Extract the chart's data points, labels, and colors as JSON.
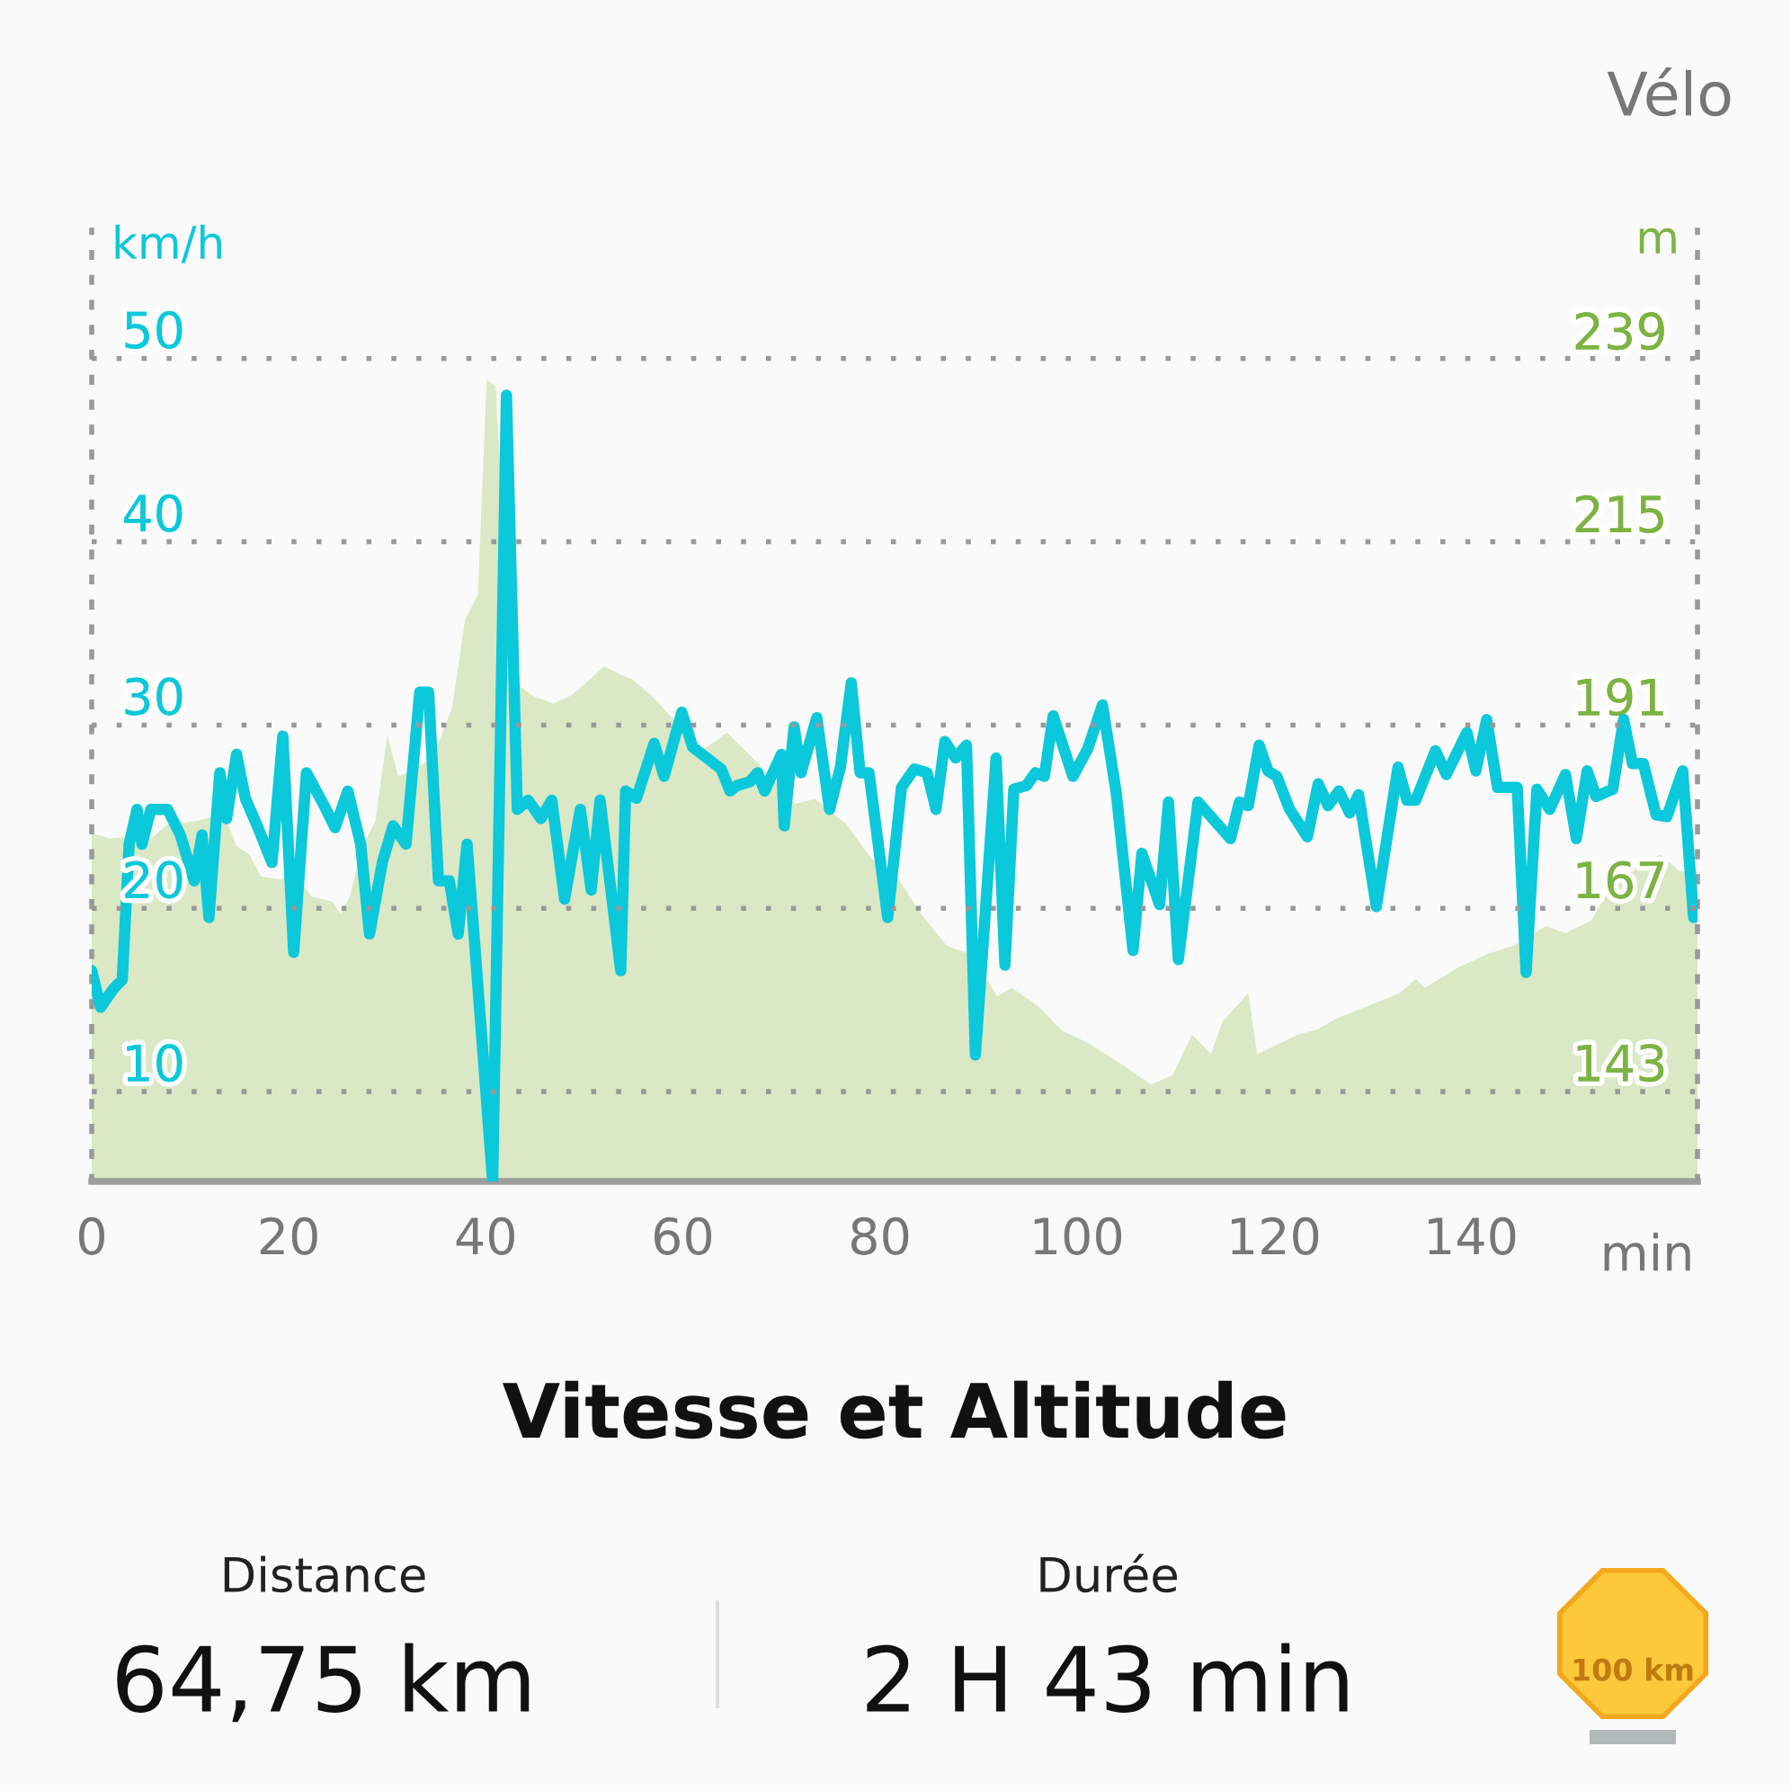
{
  "chart_data": {
    "type": "line",
    "title": "Vitesse et Altitude",
    "xlabel": "min",
    "ylabel": "km/h",
    "y2label": "m",
    "xlim": [
      0,
      163
    ],
    "xticks": [
      0,
      20,
      40,
      60,
      80,
      100,
      120,
      140
    ],
    "ylim": [
      5.1,
      57
    ],
    "yticks": [
      10,
      20,
      30,
      40,
      50
    ],
    "y2lim": [
      131.2,
      256
    ],
    "y2ticks": [
      143,
      167,
      191,
      215,
      239
    ],
    "grid": "y",
    "line_style": "solid",
    "marker": "none",
    "series": [
      {
        "type": "area",
        "axis": "y2",
        "color": "#dae8c5",
        "x": [
          0,
          1.8,
          4.0,
          5.1,
          7.7,
          10.8,
          13.4,
          14.7,
          16.0,
          17.2,
          19.2,
          20.5,
          22.3,
          24.4,
          25.3,
          26.2,
          27.5,
          28.8,
          30.0,
          31.1,
          32.6,
          34.6,
          36.6,
          37.9,
          39.2,
          40.1,
          41.0,
          41.8,
          43.0,
          44.9,
          46.9,
          48.7,
          50.0,
          52.0,
          53.8,
          54.8,
          56.8,
          59.3,
          61.9,
          64.5,
          67.6,
          71.4,
          73.4,
          76.6,
          79.1,
          81.7,
          84.2,
          86.8,
          89.4,
          91.9,
          93.4,
          96.0,
          98.5,
          101.1,
          104.9,
          107.5,
          109.7,
          111.7,
          113.6,
          114.8,
          117.4,
          118.3,
          122.5,
          124.5,
          126.4,
          129.7,
          132.8,
          134.4,
          135.3,
          138.6,
          141.8,
          144.3,
          147.6,
          149.6,
          152.2,
          154.8,
          159.2,
          161.2,
          163
        ],
        "values": [
          176.9,
          176.2,
          176.4,
          175.2,
          178.0,
          178.5,
          179.5,
          175.2,
          174.1,
          171.2,
          170.8,
          171.9,
          168.6,
          167.9,
          166.3,
          168.6,
          175.2,
          178.5,
          189.8,
          184.4,
          185.1,
          186.8,
          193.4,
          204.9,
          208.2,
          236.4,
          235.5,
          216.6,
          196.6,
          194.8,
          193.9,
          195.0,
          196.4,
          198.8,
          197.6,
          197.1,
          195.0,
          191.5,
          187.7,
          190.1,
          186.1,
          180.7,
          181.4,
          178.1,
          173.6,
          171.2,
          166.3,
          162.1,
          160.9,
          155.5,
          156.6,
          154.3,
          151.0,
          149.4,
          146.3,
          143.9,
          145.1,
          150.5,
          147.9,
          152.2,
          155.9,
          147.9,
          150.5,
          151.2,
          152.6,
          154.3,
          155.9,
          157.8,
          156.6,
          159.2,
          161.1,
          162.1,
          164.7,
          163.8,
          165.4,
          171.2,
          174.1,
          171.9,
          171.9
        ]
      },
      {
        "color": "#0bc8da",
        "x": [
          0,
          0.9,
          2.2,
          3.1,
          3.8,
          4.6,
          5.1,
          6.0,
          7.7,
          9.0,
          10.4,
          11.2,
          11.9,
          13.0,
          13.7,
          14.7,
          15.6,
          16.8,
          18.3,
          19.4,
          20.5,
          21.8,
          23.6,
          24.7,
          26.0,
          27.3,
          28.2,
          29.5,
          30.6,
          31.9,
          33.3,
          34.2,
          35.2,
          36.3,
          37.2,
          38.1,
          38.8,
          40.7,
          42.1,
          43.2,
          44.3,
          45.6,
          46.7,
          48.0,
          49.6,
          50.7,
          51.6,
          53.7,
          54.2,
          55.3,
          57.1,
          58.1,
          59.9,
          61.0,
          63.9,
          64.8,
          65.5,
          66.8,
          67.6,
          68.3,
          70.0,
          70.3,
          71.3,
          72.0,
          73.6,
          74.9,
          76.0,
          77.1,
          78.0,
          78.9,
          80.8,
          82.2,
          83.5,
          84.8,
          85.7,
          86.6,
          87.7,
          88.8,
          89.7,
          91.8,
          92.7,
          93.6,
          94.9,
          95.8,
          96.7,
          97.6,
          99.6,
          101.1,
          102.6,
          104.0,
          105.7,
          106.6,
          108.4,
          109.3,
          110.3,
          112.3,
          115.6,
          116.5,
          117.4,
          118.5,
          119.4,
          120.3,
          121.6,
          123.4,
          124.5,
          125.5,
          126.6,
          127.7,
          128.6,
          130.4,
          132.6,
          133.5,
          134.4,
          136.4,
          137.5,
          139.6,
          140.5,
          141.6,
          142.7,
          144.7,
          145.6,
          146.7,
          148.0,
          149.6,
          150.7,
          151.8,
          152.7,
          154.4,
          155.5,
          156.4,
          157.5,
          158.8,
          159.9,
          161.5,
          162.6,
          163
        ],
        "values": [
          16.6,
          14.6,
          15.6,
          16.1,
          23.5,
          25.4,
          23.5,
          25.4,
          25.4,
          24.0,
          21.5,
          24.0,
          19.5,
          27.4,
          24.9,
          28.4,
          26.0,
          24.5,
          22.5,
          29.4,
          17.6,
          27.4,
          25.6,
          24.4,
          26.4,
          23.5,
          18.6,
          22.5,
          24.5,
          23.5,
          31.8,
          31.8,
          21.5,
          21.5,
          18.6,
          23.5,
          18.6,
          5.1,
          48.0,
          25.4,
          25.9,
          24.9,
          25.9,
          20.5,
          25.4,
          21.0,
          25.9,
          16.6,
          26.4,
          26.0,
          29.0,
          27.2,
          30.7,
          28.8,
          27.6,
          26.4,
          26.7,
          26.9,
          27.4,
          26.4,
          28.4,
          24.5,
          29.9,
          27.4,
          30.4,
          25.4,
          27.7,
          32.3,
          27.4,
          27.4,
          19.5,
          26.6,
          27.6,
          27.4,
          25.4,
          29.1,
          28.2,
          28.9,
          12.0,
          28.2,
          16.9,
          26.5,
          26.7,
          27.4,
          27.2,
          30.5,
          27.2,
          28.7,
          31.1,
          26.3,
          17.7,
          23.0,
          20.2,
          25.8,
          17.2,
          25.8,
          23.8,
          25.8,
          25.6,
          28.9,
          27.5,
          27.2,
          25.4,
          23.9,
          26.8,
          25.6,
          26.4,
          25.2,
          26.2,
          20.1,
          27.7,
          25.9,
          25.9,
          28.6,
          27.3,
          29.6,
          27.5,
          30.3,
          26.6,
          26.6,
          16.5,
          26.5,
          25.4,
          27.3,
          23.8,
          27.5,
          26.1,
          26.5,
          30.3,
          27.9,
          27.9,
          25.1,
          25.0,
          27.5,
          19.5,
          19.7
        ]
      }
    ],
    "annotations": [
      "Vélo",
      "Distance",
      "64,75 km",
      "Durée",
      "2 H 43 min",
      "100 km"
    ]
  }
}
